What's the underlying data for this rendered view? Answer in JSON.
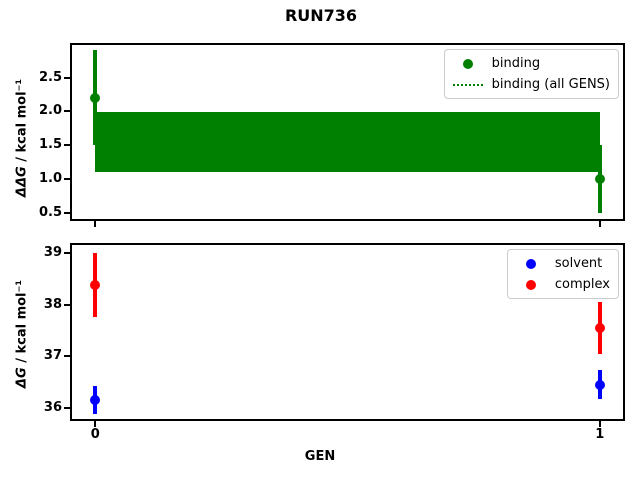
{
  "title": "RUN736",
  "colors": {
    "binding": "#008000",
    "solvent": "#0000ff",
    "complex": "#ff0000",
    "axes": "#000000",
    "legend_border": "#cccccc",
    "background": "#ffffff"
  },
  "chart_data": [
    {
      "type": "scatter",
      "title": "RUN736",
      "ylabel": "ΔΔG / kcal mol⁻¹",
      "ylabel_math": "ΔΔG",
      "ylabel_rest": " / kcal mol⁻¹",
      "xlabel": "",
      "xlim": [
        -0.05,
        1.05
      ],
      "ylim": [
        0.38,
        3.01
      ],
      "yticks": [
        0.5,
        1.0,
        1.5,
        2.0,
        2.5
      ],
      "ytick_labels": [
        "0.5",
        "1.0",
        "1.5",
        "2.0",
        "2.5"
      ],
      "xticks": [
        0,
        1
      ],
      "grid": false,
      "legend_position": "upper right",
      "series": [
        {
          "name": "binding",
          "color": "#008000",
          "x": [
            0,
            1
          ],
          "y": [
            2.2,
            1.0
          ],
          "yerr": [
            0.7,
            0.5
          ]
        }
      ],
      "band": {
        "name": "binding (all GENS)",
        "color": "#008000",
        "x": [
          0,
          1
        ],
        "lo": 1.11,
        "hi": 1.99,
        "center": 1.55
      }
    },
    {
      "type": "scatter",
      "title": "",
      "ylabel": "ΔG / kcal mol⁻¹",
      "ylabel_math": "ΔG",
      "ylabel_rest": " / kcal mol⁻¹",
      "xlabel": "GEN",
      "xlim": [
        -0.05,
        1.05
      ],
      "ylim": [
        35.75,
        39.19
      ],
      "yticks": [
        36,
        37,
        38,
        39
      ],
      "ytick_labels": [
        "36",
        "37",
        "38",
        "39"
      ],
      "xticks": [
        0,
        1
      ],
      "xtick_labels": [
        "0",
        "1"
      ],
      "grid": false,
      "legend_position": "upper right",
      "series": [
        {
          "name": "solvent",
          "color": "#0000ff",
          "x": [
            0,
            1
          ],
          "y": [
            36.15,
            36.45
          ],
          "yerr": [
            0.27,
            0.28
          ]
        },
        {
          "name": "complex",
          "color": "#ff0000",
          "x": [
            0,
            1
          ],
          "y": [
            38.38,
            37.55
          ],
          "yerr": [
            0.62,
            0.5
          ]
        }
      ]
    }
  ],
  "legends": {
    "top": [
      {
        "label": "binding",
        "marker": "dot",
        "color": "#008000"
      },
      {
        "label": "binding (all GENS)",
        "marker": "dotted-line",
        "color": "#008000"
      }
    ],
    "bottom": [
      {
        "label": "solvent",
        "marker": "dot",
        "color": "#0000ff"
      },
      {
        "label": "complex",
        "marker": "dot",
        "color": "#ff0000"
      }
    ]
  }
}
